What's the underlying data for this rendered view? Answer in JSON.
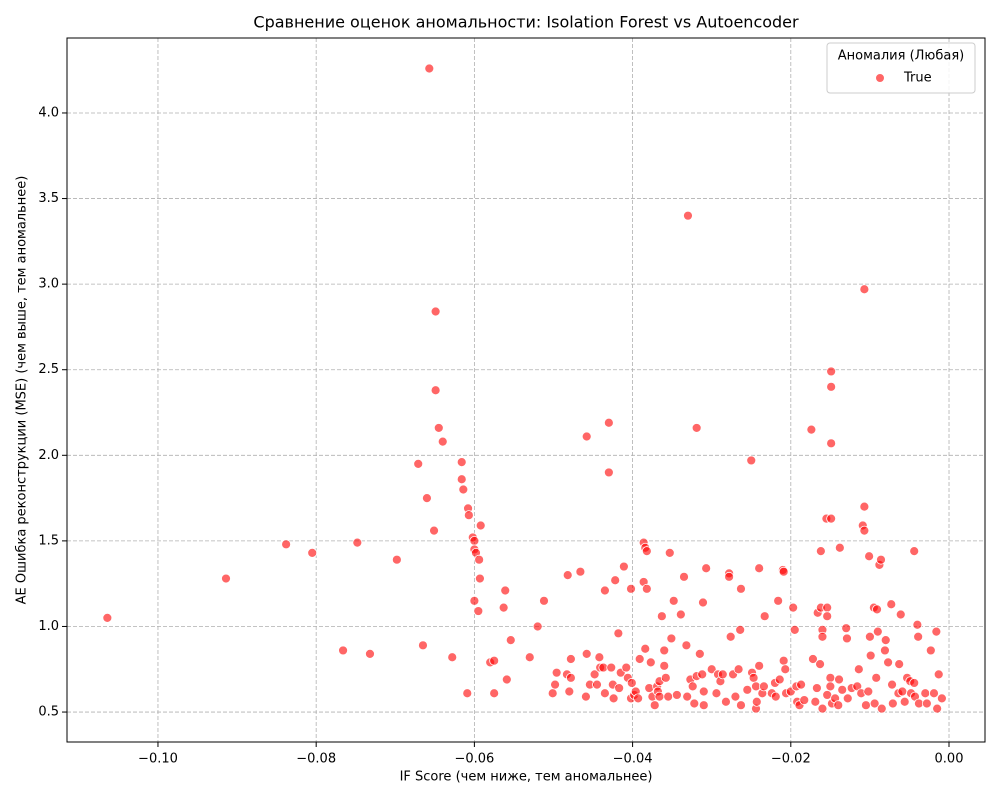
{
  "chart_data": {
    "type": "scatter",
    "title": "Сравнение оценок аномальности: Isolation Forest vs Autoencoder",
    "xlabel": "IF Score (чем ниже, тем аномальнее)",
    "ylabel": "AE Ошибка реконструкции (MSE) (чем выше, тем аномальнее)",
    "legend_title": "Аномалия (Любая)",
    "legend_loc": "upper right",
    "grid": true,
    "xlim": [
      -0.1115,
      0.00455
    ],
    "ylim": [
      0.325,
      4.438
    ],
    "xticks": [
      {
        "value": -0.1,
        "label": "−0.10"
      },
      {
        "value": -0.08,
        "label": "−0.08"
      },
      {
        "value": -0.06,
        "label": "−0.06"
      },
      {
        "value": -0.04,
        "label": "−0.04"
      },
      {
        "value": -0.02,
        "label": "−0.02"
      },
      {
        "value": 0,
        "label": "0.00"
      }
    ],
    "yticks": [
      0.5,
      {
        "value": 1,
        "label": "1.0"
      },
      1.5,
      {
        "value": 2,
        "label": "2.0"
      },
      2.5,
      {
        "value": 3,
        "label": "3.0"
      },
      3.5,
      {
        "value": 4,
        "label": "4.0"
      }
    ],
    "x": [
      -0.1064,
      -0.0914,
      -0.0838,
      -0.0805,
      -0.0766,
      -0.0748,
      -0.0732,
      -0.0698,
      -0.0671,
      -0.0665,
      -0.066,
      -0.0657,
      -0.0651,
      -0.0649,
      -0.0649,
      -0.0645,
      -0.064,
      -0.0628,
      -0.0616,
      -0.0616,
      -0.0614,
      -0.0609,
      -0.0608,
      -0.0607,
      -0.0602,
      -0.06,
      -0.06,
      -0.0598,
      -0.0594,
      -0.0593,
      -0.0592,
      -0.06,
      -0.0595,
      -0.058,
      -0.0575,
      -0.0575,
      -0.0561,
      -0.0563,
      -0.0559,
      -0.0554,
      -0.053,
      -0.052,
      -0.0512,
      -0.0501,
      -0.0498,
      -0.0496,
      -0.0483,
      -0.0482,
      -0.048,
      -0.0478,
      -0.0478,
      -0.0466,
      -0.0458,
      -0.0458,
      -0.0459,
      -0.0454,
      -0.0448,
      -0.0445,
      -0.0442,
      -0.0441,
      -0.0437,
      -0.0435,
      -0.0435,
      -0.043,
      -0.043,
      -0.0427,
      -0.0425,
      -0.0424,
      -0.0422,
      -0.0418,
      -0.0417,
      -0.0415,
      -0.0411,
      -0.0408,
      -0.0406,
      -0.0402,
      -0.0401,
      -0.0402,
      -0.0398,
      -0.0396,
      -0.0393,
      -0.0391,
      -0.0386,
      -0.0384,
      -0.0382,
      -0.0386,
      -0.0382,
      -0.0384,
      -0.0379,
      -0.0377,
      -0.0375,
      -0.0372,
      -0.0369,
      -0.0368,
      -0.0366,
      -0.0366,
      -0.0363,
      -0.036,
      -0.036,
      -0.0358,
      -0.0355,
      -0.0353,
      -0.0351,
      -0.0348,
      -0.0344,
      -0.0339,
      -0.0335,
      -0.0332,
      -0.0331,
      -0.033,
      -0.0327,
      -0.0324,
      -0.0322,
      -0.0319,
      -0.0319,
      -0.0315,
      -0.0312,
      -0.0311,
      -0.031,
      -0.031,
      -0.0307,
      -0.03,
      -0.0294,
      -0.0292,
      -0.0289,
      -0.0286,
      -0.0282,
      -0.0278,
      -0.0278,
      -0.0276,
      -0.0273,
      -0.027,
      -0.0266,
      -0.0264,
      -0.0263,
      -0.0263,
      -0.0255,
      -0.025,
      -0.0249,
      -0.0247,
      -0.0244,
      -0.0244,
      -0.0243,
      -0.024,
      -0.024,
      -0.0236,
      -0.0234,
      -0.0233,
      -0.0224,
      -0.022,
      -0.0219,
      -0.0216,
      -0.0214,
      -0.021,
      -0.0209,
      -0.0209,
      -0.0207,
      -0.0206,
      -0.02,
      -0.0197,
      -0.0195,
      -0.0193,
      -0.0192,
      -0.0189,
      -0.0187,
      -0.0183,
      -0.0174,
      -0.0172,
      -0.0169,
      -0.0167,
      -0.0166,
      -0.0163,
      -0.0162,
      -0.016,
      -0.016,
      -0.0162,
      -0.016,
      -0.0155,
      -0.0154,
      -0.0154,
      -0.0154,
      -0.015,
      -0.015,
      -0.0149,
      -0.0149,
      -0.0149,
      -0.0149,
      -0.0148,
      -0.0144,
      -0.014,
      -0.0139,
      -0.0138,
      -0.0135,
      -0.013,
      -0.0129,
      -0.0128,
      -0.0123,
      -0.0116,
      -0.0114,
      -0.0111,
      -0.0107,
      -0.0107,
      -0.0109,
      -0.0107,
      -0.0105,
      -0.0102,
      -0.0101,
      -0.01,
      -0.0099,
      -0.0095,
      -0.0094,
      -0.0092,
      -0.0091,
      -0.009,
      -0.0088,
      -0.0086,
      -0.0085,
      -0.0081,
      -0.008,
      -0.0077,
      -0.0073,
      -0.0072,
      -0.0071,
      -0.0064,
      -0.0063,
      -0.0061,
      -0.0059,
      -0.0056,
      -0.0053,
      -0.0049,
      -0.0048,
      -0.0044,
      -0.0044,
      -0.0043,
      -0.004,
      -0.0039,
      -0.0038,
      -0.003,
      -0.0028,
      -0.0023,
      -0.0019,
      -0.0016,
      -0.0015,
      -0.0013,
      -0.0009
    ],
    "series": [
      {
        "name": "True",
        "color": "#ff0000",
        "values": [
          1.05,
          1.28,
          1.48,
          1.43,
          0.86,
          1.49,
          0.84,
          1.39,
          1.95,
          0.89,
          1.75,
          4.26,
          1.56,
          2.84,
          2.38,
          2.16,
          2.08,
          0.82,
          1.96,
          1.86,
          1.8,
          0.61,
          1.69,
          1.65,
          1.52,
          1.5,
          1.45,
          1.43,
          1.39,
          1.28,
          1.59,
          1.15,
          1.09,
          0.79,
          0.8,
          0.61,
          1.21,
          1.11,
          0.69,
          0.92,
          0.82,
          1.0,
          1.15,
          0.61,
          0.66,
          0.73,
          0.72,
          1.3,
          0.62,
          0.81,
          0.7,
          1.32,
          2.11,
          0.84,
          0.59,
          0.66,
          0.72,
          0.66,
          0.82,
          0.76,
          0.76,
          1.21,
          0.61,
          2.19,
          1.9,
          0.76,
          0.66,
          0.58,
          1.27,
          0.96,
          0.64,
          0.73,
          1.35,
          0.76,
          0.7,
          1.22,
          0.67,
          0.58,
          0.6,
          0.62,
          0.58,
          0.81,
          1.49,
          1.46,
          1.44,
          1.26,
          1.22,
          0.87,
          0.64,
          0.79,
          0.59,
          0.54,
          0.65,
          0.62,
          0.68,
          0.59,
          1.06,
          0.86,
          0.77,
          0.7,
          0.59,
          1.43,
          0.93,
          1.15,
          0.6,
          1.07,
          1.29,
          0.89,
          0.59,
          3.4,
          0.69,
          0.65,
          0.55,
          2.16,
          0.71,
          0.84,
          0.72,
          1.14,
          0.62,
          0.54,
          1.34,
          0.75,
          0.61,
          0.72,
          0.68,
          0.72,
          0.56,
          1.31,
          1.29,
          0.94,
          0.72,
          0.59,
          0.75,
          0.98,
          1.22,
          0.54,
          0.63,
          1.97,
          0.73,
          0.7,
          0.65,
          0.52,
          0.56,
          1.34,
          0.77,
          0.61,
          0.65,
          1.06,
          0.61,
          0.67,
          0.59,
          1.15,
          0.69,
          1.33,
          1.32,
          0.8,
          0.75,
          0.61,
          0.62,
          1.11,
          0.98,
          0.65,
          0.56,
          0.54,
          0.66,
          0.57,
          2.15,
          0.81,
          0.56,
          0.64,
          1.08,
          0.78,
          1.44,
          0.98,
          0.94,
          1.11,
          0.52,
          1.63,
          1.11,
          1.06,
          0.6,
          0.7,
          0.65,
          2.49,
          2.4,
          2.07,
          1.63,
          0.55,
          0.58,
          0.54,
          0.69,
          1.46,
          0.63,
          0.99,
          0.93,
          0.58,
          0.64,
          0.65,
          0.75,
          0.61,
          1.7,
          2.97,
          1.59,
          1.56,
          0.54,
          0.62,
          1.41,
          0.94,
          0.83,
          1.11,
          0.55,
          0.7,
          1.1,
          0.97,
          1.36,
          1.39,
          0.52,
          0.86,
          0.92,
          0.79,
          1.13,
          0.66,
          0.55,
          0.61,
          0.78,
          1.07,
          0.62,
          0.56,
          0.7,
          0.68,
          0.61,
          1.44,
          0.67,
          0.59,
          1.01,
          0.94,
          0.55,
          0.61,
          0.55,
          0.86,
          0.61,
          0.97,
          0.52,
          0.72,
          0.58
        ]
      }
    ]
  }
}
